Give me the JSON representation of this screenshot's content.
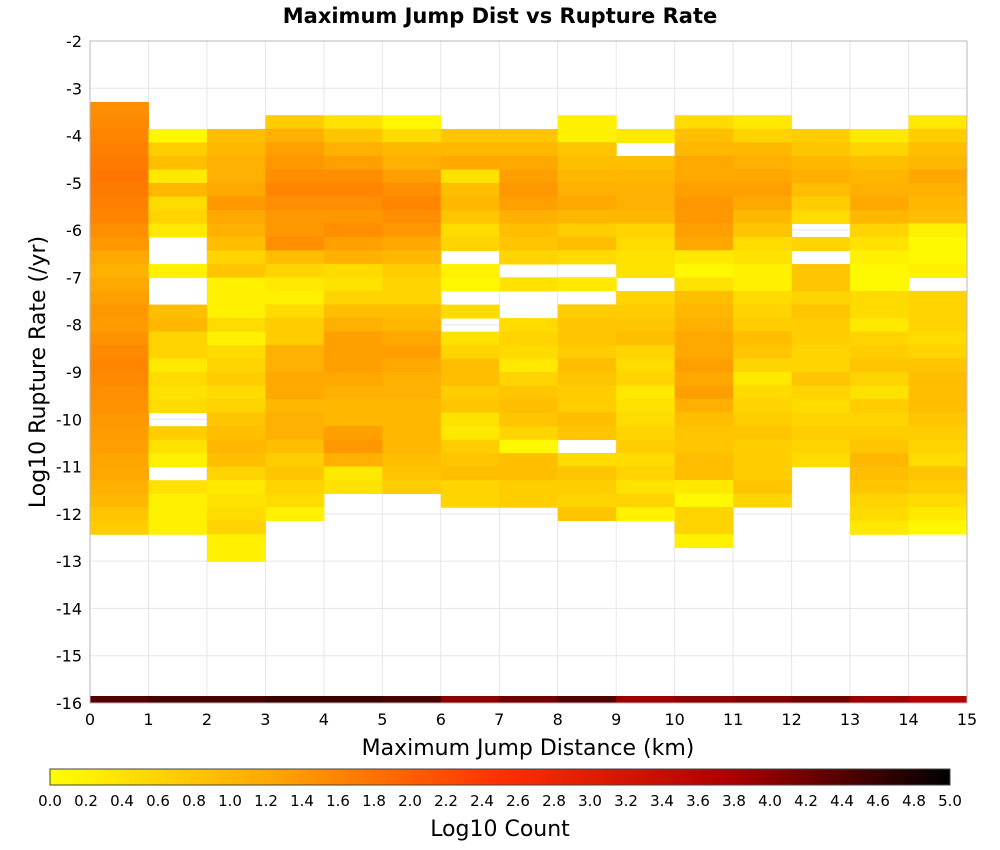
{
  "chart_data": {
    "type": "heatmap",
    "title": "Maximum Jump Dist vs Rupture Rate",
    "xlabel": "Maximum Jump Distance (km)",
    "ylabel": "Log10 Rupture Rate (/yr)",
    "xlim": [
      0,
      15
    ],
    "ylim": [
      -16,
      -2
    ],
    "x_ticks": [
      "0",
      "1",
      "2",
      "3",
      "4",
      "5",
      "6",
      "7",
      "8",
      "9",
      "10",
      "11",
      "12",
      "13",
      "14",
      "15"
    ],
    "y_ticks": [
      "-2",
      "-3",
      "-4",
      "-5",
      "-6",
      "-7",
      "-8",
      "-9",
      "-10",
      "-11",
      "-12",
      "-13",
      "-14",
      "-15",
      "-16"
    ],
    "grid": true,
    "colorbar": {
      "label": "Log10 Count",
      "range": [
        0,
        5
      ],
      "colors": [
        "#ffff00",
        "#ffa500",
        "#ff3000",
        "#b00000",
        "#000000"
      ],
      "ticks": [
        "0.0",
        "0.2",
        "0.4",
        "0.6",
        "0.8",
        "1.0",
        "1.2",
        "1.4",
        "1.6",
        "1.8",
        "2.0",
        "2.2",
        "2.4",
        "2.6",
        "2.8",
        "3.0",
        "3.2",
        "3.4",
        "3.6",
        "3.8",
        "4.0",
        "4.2",
        "4.4",
        "4.6",
        "4.8",
        "5.0"
      ]
    },
    "y_bin_width": 0.2857,
    "x_bin_width": 1,
    "columns": [
      {
        "x": 0,
        "y_top": -3.29,
        "values": [
          1.5,
          1.55,
          1.6,
          1.65,
          1.7,
          1.75,
          1.7,
          1.65,
          1.6,
          1.5,
          1.4,
          1.2,
          1.1,
          1.2,
          1.3,
          1.4,
          1.35,
          1.45,
          1.55,
          1.6,
          1.55,
          1.5,
          1.45,
          1.4,
          1.35,
          1.3,
          1.25,
          1.2,
          1.1,
          1.0,
          0.8,
          0.7
        ]
      },
      {
        "x": 1,
        "y_top": -3.86,
        "values": [
          0.1,
          0.7,
          0.9,
          0.3,
          1.0,
          0.5,
          0.6,
          0.3,
          null,
          null,
          0.2,
          null,
          null,
          0.9,
          1.0,
          0.6,
          0.6,
          0.3,
          0.5,
          0.4,
          0.5,
          null,
          0.7,
          0.4,
          0.2,
          null,
          0.4,
          0.2,
          0.2,
          0.2
        ]
      },
      {
        "x": 2,
        "y_top": -3.86,
        "values": [
          0.9,
          1.0,
          1.1,
          1.1,
          1.2,
          1.4,
          1.2,
          1.1,
          0.9,
          0.6,
          0.8,
          0.2,
          0.2,
          0.2,
          0.5,
          0.2,
          0.5,
          0.6,
          0.7,
          0.5,
          0.6,
          0.8,
          0.9,
          1.0,
          0.9,
          0.6,
          0.3,
          0.4,
          0.5,
          0.6,
          0.2,
          0.2
        ]
      },
      {
        "x": 3,
        "y_top": -3.57,
        "values": [
          0.7,
          1.1,
          1.3,
          1.4,
          1.5,
          1.6,
          1.5,
          1.4,
          1.4,
          1.5,
          0.9,
          0.6,
          0.3,
          0.2,
          0.5,
          0.7,
          0.7,
          1.1,
          1.1,
          1.2,
          1.2,
          1.0,
          1.1,
          1.1,
          0.9,
          0.7,
          0.8,
          0.6,
          0.5,
          0.2
        ]
      },
      {
        "x": 4,
        "y_top": -3.57,
        "values": [
          0.4,
          0.8,
          1.1,
          1.3,
          1.5,
          1.6,
          1.5,
          1.4,
          1.5,
          1.3,
          1.1,
          0.5,
          0.4,
          0.6,
          0.9,
          1.1,
          1.3,
          1.3,
          1.3,
          1.2,
          1.1,
          1.0,
          1.0,
          1.3,
          1.4,
          1.1,
          0.3,
          0.4
        ]
      },
      {
        "x": 5,
        "y_top": -3.57,
        "values": [
          0.1,
          0.5,
          1.0,
          1.1,
          1.3,
          1.5,
          1.6,
          1.5,
          1.4,
          1.2,
          1.0,
          0.7,
          0.6,
          0.6,
          0.9,
          1.0,
          1.2,
          1.3,
          1.2,
          1.1,
          1.1,
          1.0,
          1.0,
          1.0,
          1.0,
          0.9,
          0.8,
          0.7
        ]
      },
      {
        "x": 6,
        "y_top": -3.86,
        "values": [
          0.8,
          1.0,
          1.2,
          0.4,
          0.9,
          1.0,
          0.8,
          0.5,
          0.6,
          null,
          0.2,
          0.1,
          null,
          0.5,
          null,
          0.4,
          0.6,
          0.9,
          0.9,
          0.7,
          0.8,
          0.4,
          0.3,
          0.7,
          0.8,
          0.9,
          0.6,
          0.6
        ]
      },
      {
        "x": 7,
        "y_top": -3.86,
        "values": [
          0.8,
          1.0,
          1.2,
          1.3,
          1.4,
          1.3,
          1.1,
          0.9,
          0.8,
          0.6,
          null,
          0.4,
          null,
          null,
          0.5,
          0.6,
          0.5,
          0.3,
          0.6,
          0.8,
          0.9,
          0.8,
          0.6,
          0.1,
          0.9,
          0.9,
          0.7,
          0.7
        ]
      },
      {
        "x": 8,
        "y_top": -3.57,
        "values": [
          0.2,
          0.2,
          0.8,
          0.9,
          1.0,
          1.1,
          1.2,
          1.0,
          0.7,
          0.9,
          0.5,
          null,
          0.3,
          null,
          0.7,
          0.8,
          0.8,
          0.7,
          0.9,
          0.8,
          0.7,
          0.7,
          0.9,
          0.8,
          null,
          0.5,
          0.8,
          0.7,
          0.6,
          0.8
        ]
      },
      {
        "x": 9,
        "y_top": -3.86,
        "values": [
          0.3,
          null,
          0.9,
          1.0,
          1.1,
          1.1,
          1.0,
          0.6,
          0.5,
          0.4,
          0.4,
          null,
          0.6,
          0.7,
          0.8,
          0.9,
          0.6,
          0.5,
          0.6,
          0.3,
          0.4,
          0.5,
          0.6,
          0.7,
          0.5,
          0.6,
          0.4,
          0.6,
          0.2
        ]
      },
      {
        "x": 10,
        "y_top": -3.57,
        "values": [
          0.5,
          0.9,
          1.0,
          1.2,
          1.2,
          1.3,
          1.4,
          1.4,
          1.3,
          1.2,
          0.3,
          0.1,
          0.4,
          0.9,
          1.0,
          1.1,
          1.2,
          1.2,
          1.3,
          1.2,
          1.3,
          1.1,
          0.9,
          0.8,
          0.8,
          0.9,
          0.9,
          0.3,
          0.1,
          0.6,
          0.6,
          0.2
        ]
      },
      {
        "x": 11,
        "y_top": -3.57,
        "values": [
          0.3,
          0.6,
          1.0,
          1.1,
          1.2,
          1.3,
          1.2,
          1.0,
          0.8,
          0.5,
          0.4,
          0.2,
          0.2,
          0.5,
          0.6,
          0.7,
          0.9,
          0.8,
          0.6,
          0.3,
          0.5,
          0.6,
          0.7,
          0.8,
          0.7,
          0.7,
          0.7,
          0.8,
          0.6
        ]
      },
      {
        "x": 12,
        "y_top": -3.86,
        "values": [
          0.7,
          0.8,
          1.0,
          1.1,
          0.9,
          0.7,
          0.5,
          null,
          0.6,
          null,
          0.8,
          0.8,
          0.6,
          0.8,
          0.7,
          0.7,
          0.6,
          0.6,
          0.8,
          0.6,
          0.5,
          0.6,
          0.7,
          0.6,
          0.5
        ]
      },
      {
        "x": 13,
        "y_top": -3.86,
        "values": [
          0.3,
          0.6,
          0.9,
          1.0,
          1.1,
          1.2,
          1.0,
          0.6,
          0.4,
          0.2,
          0.1,
          0.1,
          0.5,
          0.5,
          0.3,
          0.6,
          0.7,
          0.8,
          0.6,
          0.4,
          0.7,
          0.6,
          0.7,
          0.8,
          1.0,
          0.9,
          0.8,
          0.6,
          0.5,
          0.3
        ]
      },
      {
        "x": 14,
        "y_top": -3.57,
        "values": [
          0.3,
          0.7,
          0.9,
          1.0,
          1.2,
          1.1,
          1.0,
          0.9,
          0.2,
          0.1,
          0.1,
          0.2,
          null,
          0.6,
          0.6,
          0.6,
          0.5,
          0.6,
          0.8,
          0.9,
          0.9,
          0.9,
          0.8,
          0.7,
          0.6,
          0.5,
          0.8,
          0.7,
          0.5,
          0.3,
          0.1
        ]
      }
    ],
    "bottom_band": {
      "y": -16,
      "values": [
        4.4,
        4.5,
        4.5,
        4.6,
        4.6,
        4.5,
        4.0,
        4.2,
        4.4,
        3.9,
        4.0,
        4.1,
        4.2,
        3.9,
        3.7
      ]
    }
  }
}
